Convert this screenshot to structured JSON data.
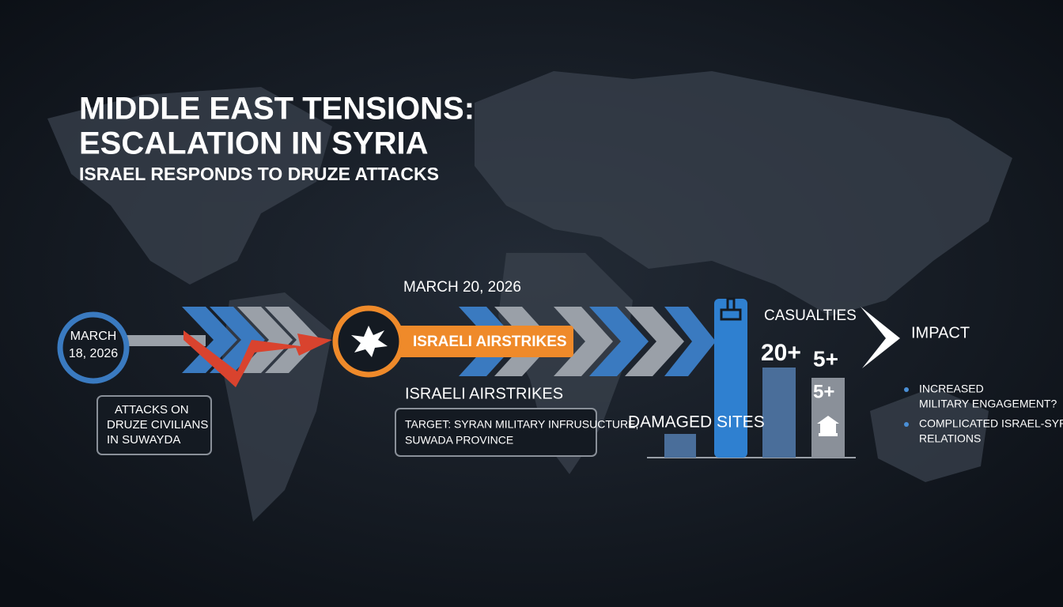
{
  "header": {
    "title_lines": [
      "MIDDLE EAST TENSIONS:",
      "ESCALATION IN SYRIA"
    ],
    "subtitle": "ISRAEL RESPONDS TO DRUZE ATTACKS"
  },
  "event_1": {
    "date_lines": [
      "MARCH",
      "18, 2026"
    ],
    "description_lines": [
      "ATTACKS ON",
      "DRUZE CIVILIANS",
      "IN SUWAYDA"
    ]
  },
  "event_2": {
    "date": "MARCH 20, 2026",
    "banner": "ISRAELI AIRSTRIKES",
    "heading": "ISRAELI AIRSTRIKES",
    "target_lines": [
      "TARGET: SYRAN MILITARY INFRUSUCTURE,",
      "SUWADA PROVINCE"
    ]
  },
  "stats": {
    "casualties_label": "CASUALTIES",
    "casualties_value": "20+",
    "second_value": "5+",
    "third_value": "5+",
    "damaged_sites_label": "DAMAGED SITES"
  },
  "impact": {
    "title": "IMPACT",
    "bullets": [
      [
        "INCREASED",
        "MILITARY ENGAGEMENT?"
      ],
      [
        "COMPLICATED ISRAEL-SYRIA",
        "RELATIONS"
      ]
    ]
  }
}
